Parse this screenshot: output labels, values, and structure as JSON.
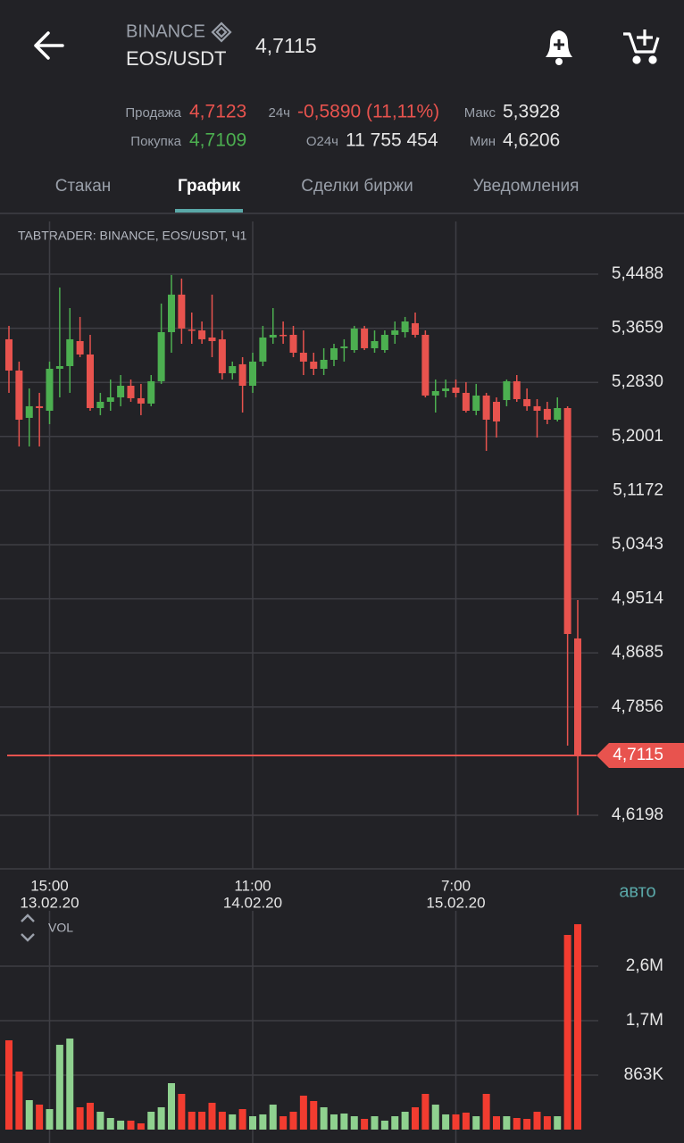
{
  "header": {
    "exchange": "BINANCE",
    "pair": "EOS/USDT",
    "price": "4,7115"
  },
  "stats": {
    "sell_label": "Продажа",
    "sell": "4,7123",
    "buy_label": "Покупка",
    "buy": "4,7109",
    "change_label": "24ч",
    "change": "-0,5890 (11,11%)",
    "volume_label": "О24ч",
    "volume": "11 755 454",
    "max_label": "Макс",
    "max": "5,3928",
    "min_label": "Мин",
    "min": "4,6206"
  },
  "tabs": [
    "Стакан",
    "График",
    "Сделки биржи",
    "Уведомления"
  ],
  "active_tab": 1,
  "chart_data": [
    {
      "type": "candlestick",
      "title": "TABTRADER: BINANCE, EOS/USDT, Ч1",
      "scale_button": "авто",
      "categories": [
        null,
        null,
        null,
        null,
        {
          "time": "15:00",
          "date": "13.02.20"
        },
        null,
        null,
        null,
        null,
        null,
        null,
        null,
        null,
        null,
        null,
        null,
        null,
        null,
        null,
        null,
        null,
        null,
        null,
        null,
        {
          "time": "11:00",
          "date": "14.02.20"
        },
        null,
        null,
        null,
        null,
        null,
        null,
        null,
        null,
        null,
        null,
        null,
        null,
        null,
        null,
        null,
        null,
        null,
        null,
        null,
        {
          "time": "7:00",
          "date": "15.02.20"
        },
        null,
        null,
        null,
        null,
        null,
        null,
        null,
        null,
        null,
        null,
        null,
        null
      ],
      "open": [
        5.349,
        5.3011,
        5.2286,
        5.2464,
        5.2395,
        5.3038,
        5.3079,
        5.3462,
        5.3257,
        5.2436,
        5.2532,
        5.26,
        5.2778,
        5.2587,
        5.2505,
        5.2847,
        5.3599,
        5.4174,
        5.364,
        5.3626,
        5.3517,
        5.349,
        5.297,
        5.3107,
        5.2778,
        5.3148,
        5.3517,
        5.3558,
        5.3558,
        5.3284,
        5.3148,
        5.3038,
        5.3175,
        5.3353,
        5.3325,
        5.3654,
        5.3353,
        5.3325,
        5.3558,
        5.3599,
        5.3736,
        5.3558,
        5.2628,
        5.2696,
        5.2751,
        5.2669,
        5.2395,
        5.2628,
        5.2532,
        5.2559,
        5.2847,
        5.2573,
        5.2464,
        5.2423,
        5.2258,
        5.2436,
        4.8907
      ],
      "high": [
        5.3695,
        5.3148,
        5.2737,
        5.2669,
        5.3148,
        5.4283,
        5.3968,
        5.3832,
        5.3558,
        5.2669,
        5.2874,
        5.2942,
        5.2874,
        5.2806,
        5.2942,
        5.4037,
        5.4475,
        5.442,
        5.39,
        5.3763,
        5.4174,
        5.3626,
        5.3148,
        5.3216,
        5.3284,
        5.3695,
        5.3968,
        5.3763,
        5.3695,
        5.3626,
        5.3284,
        5.3353,
        5.3421,
        5.349,
        5.3695,
        5.3695,
        5.3626,
        5.3626,
        5.3763,
        5.3832,
        5.39,
        5.3626,
        5.2874,
        5.2874,
        5.2874,
        5.2833,
        5.2806,
        5.2669,
        5.26,
        5.2874,
        5.2942,
        5.2737,
        5.2573,
        5.2532,
        5.26,
        5.2464,
        4.9495
      ],
      "low": [
        5.2669,
        5.1848,
        5.1848,
        5.1848,
        5.219,
        5.26,
        5.2669,
        5.3216,
        5.2395,
        5.2327,
        5.2395,
        5.2464,
        5.2532,
        5.2327,
        5.2464,
        5.2806,
        5.3284,
        5.3421,
        5.3421,
        5.3421,
        5.3216,
        5.2874,
        5.2874,
        5.2368,
        5.2669,
        5.3079,
        5.3421,
        5.3421,
        5.3216,
        5.2942,
        5.2942,
        5.2942,
        5.3079,
        5.3148,
        5.3284,
        5.3325,
        5.3284,
        5.3284,
        5.3421,
        5.3517,
        5.3517,
        5.26,
        5.2368,
        5.26,
        5.26,
        5.2368,
        5.2327,
        5.178,
        5.1985,
        5.2464,
        5.2532,
        5.2395,
        5.1985,
        5.219,
        5.2231,
        4.7265,
        4.6198
      ],
      "close": [
        5.3011,
        5.2258,
        5.2464,
        5.2436,
        5.3038,
        5.3079,
        5.349,
        5.3257,
        5.2436,
        5.2532,
        5.26,
        5.2778,
        5.2587,
        5.2505,
        5.2847,
        5.3599,
        5.4174,
        5.3654,
        5.3626,
        5.349,
        5.3462,
        5.297,
        5.3079,
        5.2778,
        5.3148,
        5.3517,
        5.3558,
        5.3544,
        5.3284,
        5.3148,
        5.3038,
        5.3175,
        5.3353,
        5.338,
        5.3654,
        5.3353,
        5.3462,
        5.3558,
        5.3626,
        5.3763,
        5.3558,
        5.2628,
        5.2696,
        5.2737,
        5.2669,
        5.2395,
        5.2628,
        5.2258,
        5.2231,
        5.2847,
        5.2573,
        5.2464,
        5.2395,
        5.2258,
        5.2436,
        4.8975,
        4.7115
      ],
      "up_color": "#4caf50",
      "down_color": "#e8534e",
      "ylim": [
        4.5377,
        5.5295
      ],
      "yticks": [
        {
          "value": 5.4488,
          "label": "5,4488"
        },
        {
          "value": 5.3659,
          "label": "5,3659"
        },
        {
          "value": 5.283,
          "label": "5,2830"
        },
        {
          "value": 5.2001,
          "label": "5,2001"
        },
        {
          "value": 5.1172,
          "label": "5,1172"
        },
        {
          "value": 5.0343,
          "label": "5,0343"
        },
        {
          "value": 4.9514,
          "label": "4,9514"
        },
        {
          "value": 4.8685,
          "label": "4,8685"
        },
        {
          "value": 4.7856,
          "label": "4,7856"
        },
        {
          "value": 4.6198,
          "label": "4,6198"
        }
      ],
      "last_price": {
        "value": 4.7115,
        "label": "4,7115"
      },
      "last_price_color": "#e8534e",
      "grid": true
    },
    {
      "type": "bar",
      "title": "VOL",
      "values": [
        1415000,
        920000,
        467000,
        396000,
        325000,
        1344000,
        1443000,
        354000,
        425000,
        283000,
        184000,
        142000,
        142000,
        99000,
        283000,
        354000,
        736000,
        566000,
        283000,
        283000,
        425000,
        283000,
        241000,
        325000,
        212000,
        241000,
        396000,
        212000,
        283000,
        538000,
        453000,
        354000,
        241000,
        255000,
        212000,
        170000,
        212000,
        142000,
        212000,
        283000,
        354000,
        566000,
        396000,
        241000,
        241000,
        269000,
        212000,
        566000,
        212000,
        212000,
        184000,
        170000,
        283000,
        212000,
        212000,
        3085000,
        3255000
      ],
      "up_color": "#8fd18f",
      "down_color": "#f23c30",
      "ylim": [
        0,
        3467000
      ],
      "yticks": [
        {
          "value": 863000,
          "label": "863K"
        },
        {
          "value": 1726000,
          "label": "1,7M"
        },
        {
          "value": 2589000,
          "label": "2,6M"
        }
      ],
      "grid": true
    }
  ]
}
